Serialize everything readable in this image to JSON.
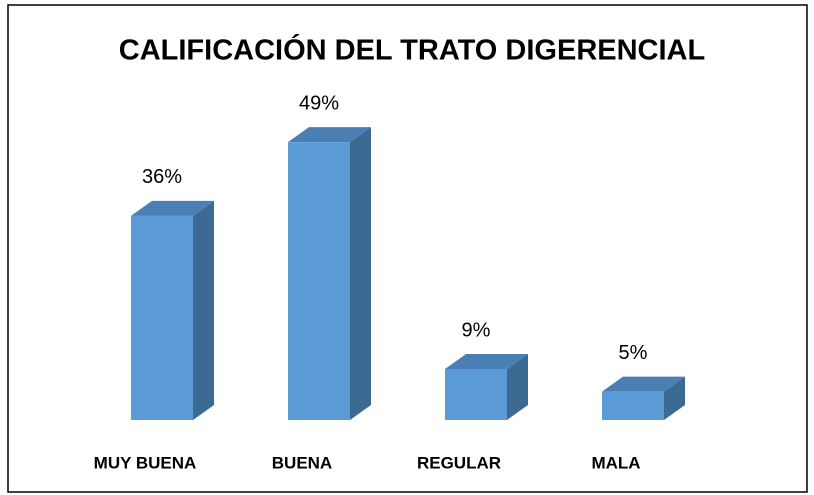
{
  "chart_data": {
    "type": "bar3d",
    "title": "CALIFICACIÓN DEL TRATO DIGERENCIAL",
    "categories": [
      "MUY BUENA",
      "BUENA",
      "REGULAR",
      "MALA"
    ],
    "values": [
      36,
      49,
      9,
      5
    ],
    "value_labels": [
      "36%",
      "49%",
      "9%",
      "5%"
    ],
    "color": "#5b9bd5"
  }
}
